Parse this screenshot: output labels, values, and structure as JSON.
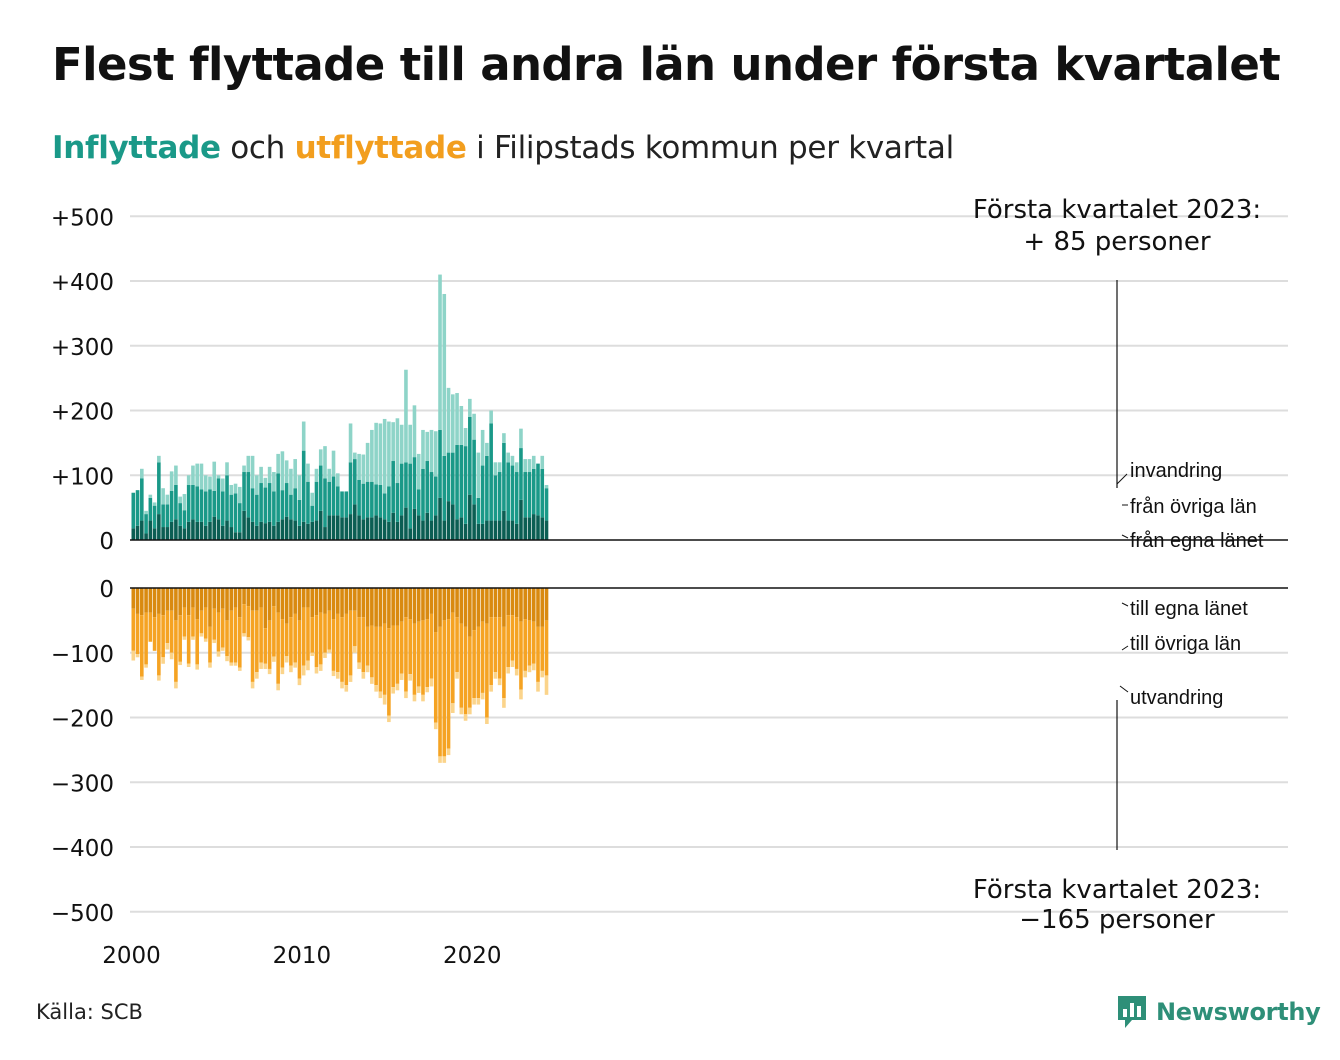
{
  "title": "Flest flyttade till andra län under första kvartalet",
  "subtitle": {
    "in_word": "Inflyttade",
    "mid_word": "och",
    "out_word": "utflyttade",
    "rest": "i Filipstads kommun per kvartal"
  },
  "source": "Källa: SCB",
  "logo": {
    "name": "Newsworthy",
    "icon": "bar-chart-speech-bubble-icon"
  },
  "colors": {
    "in_egna": "#0b5e53",
    "in_ovriga": "#1a9988",
    "in_invandring": "#8ed4c8",
    "out_egna": "#d98a10",
    "out_ovriga": "#f5a323",
    "out_utvandring": "#fbd48b",
    "grid": "#dddddd"
  },
  "chart_data": [
    {
      "type": "bar",
      "stacked": true,
      "x_start_year": 2000,
      "x_step": "quarter",
      "xticks": [
        "2000",
        "2010",
        "2020"
      ],
      "yticks": [
        "+500",
        "+400",
        "+300",
        "+200",
        "+100",
        "0"
      ],
      "ylim": [
        0,
        500
      ],
      "grid": true,
      "series": [
        {
          "name": "från egna länet",
          "values": [
            18,
            22,
            30,
            10,
            30,
            18,
            40,
            20,
            20,
            28,
            32,
            22,
            18,
            28,
            32,
            28,
            28,
            22,
            28,
            36,
            32,
            22,
            30,
            20,
            12,
            12,
            45,
            35,
            28,
            22,
            28,
            26,
            28,
            22,
            28,
            32,
            36,
            32,
            30,
            22,
            28,
            25,
            28,
            30,
            45,
            20,
            38,
            38,
            38,
            35,
            35,
            40,
            55,
            38,
            32,
            35,
            35,
            38,
            35,
            32,
            28,
            42,
            28,
            38,
            50,
            18,
            48,
            38,
            30,
            42,
            30,
            38,
            65,
            30,
            60,
            55,
            32,
            35,
            25,
            70,
            55,
            25,
            25,
            30,
            30,
            30,
            30,
            45,
            30,
            30,
            25,
            62,
            35,
            35,
            40,
            38,
            35,
            30
          ]
        },
        {
          "name": "från övriga län",
          "values": [
            55,
            55,
            65,
            30,
            35,
            35,
            80,
            35,
            35,
            48,
            53,
            35,
            28,
            57,
            53,
            55,
            50,
            53,
            50,
            40,
            63,
            53,
            70,
            50,
            60,
            45,
            60,
            70,
            52,
            48,
            60,
            55,
            60,
            53,
            75,
            45,
            52,
            38,
            50,
            40,
            110,
            65,
            25,
            60,
            70,
            75,
            52,
            60,
            45,
            40,
            40,
            80,
            70,
            55,
            55,
            55,
            55,
            48,
            50,
            40,
            55,
            80,
            60,
            80,
            70,
            100,
            80,
            40,
            80,
            80,
            75,
            60,
            105,
            100,
            75,
            80,
            115,
            112,
            120,
            120,
            100,
            40,
            90,
            100,
            150,
            70,
            75,
            105,
            90,
            85,
            80,
            80,
            70,
            70,
            70,
            80,
            75,
            50
          ]
        },
        {
          "name": "invandring",
          "values": [
            0,
            0,
            15,
            5,
            5,
            5,
            10,
            25,
            15,
            30,
            30,
            10,
            25,
            15,
            30,
            35,
            40,
            25,
            20,
            45,
            5,
            20,
            20,
            15,
            15,
            25,
            10,
            25,
            50,
            30,
            25,
            15,
            25,
            30,
            30,
            60,
            35,
            40,
            45,
            38,
            45,
            28,
            20,
            20,
            25,
            50,
            20,
            40,
            20,
            0,
            0,
            60,
            10,
            40,
            45,
            60,
            80,
            95,
            95,
            115,
            100,
            60,
            100,
            60,
            143,
            60,
            80,
            55,
            60,
            45,
            65,
            70,
            240,
            250,
            100,
            90,
            80,
            60,
            28,
            28,
            40,
            70,
            55,
            20,
            20,
            20,
            15,
            15,
            15,
            15,
            15,
            30,
            20,
            20,
            20,
            0,
            20,
            5
          ]
        }
      ]
    },
    {
      "type": "bar",
      "stacked": true,
      "x_start_year": 2000,
      "x_step": "quarter",
      "xticks": [
        "2000",
        "2010",
        "2020"
      ],
      "yticks": [
        "0",
        "−100",
        "−200",
        "−300",
        "−400",
        "−500"
      ],
      "ylim": [
        -500,
        0
      ],
      "grid": true,
      "series": [
        {
          "name": "till egna länet",
          "values": [
            -32,
            -40,
            -42,
            -38,
            -38,
            -45,
            -40,
            -42,
            -35,
            -35,
            -50,
            -42,
            -30,
            -42,
            -30,
            -48,
            -35,
            -30,
            -60,
            -32,
            -38,
            -32,
            -50,
            -35,
            -30,
            -45,
            -25,
            -28,
            -35,
            -35,
            -30,
            -62,
            -50,
            -28,
            -38,
            -48,
            -55,
            -45,
            -40,
            -50,
            -30,
            -30,
            -45,
            -42,
            -38,
            -40,
            -35,
            -48,
            -40,
            -45,
            -40,
            -35,
            -35,
            -45,
            -45,
            -60,
            -58,
            -60,
            -60,
            -55,
            -62,
            -58,
            -58,
            -52,
            -45,
            -48,
            -55,
            -52,
            -50,
            -48,
            -40,
            -68,
            -60,
            -50,
            -48,
            -38,
            -45,
            -55,
            -60,
            -75,
            -65,
            -60,
            -52,
            -55,
            -45,
            -45,
            -45,
            -60,
            -42,
            -42,
            -45,
            -52,
            -48,
            -50,
            -52,
            -60,
            -60,
            -50
          ]
        },
        {
          "name": "till övriga län",
          "values": [
            -65,
            -62,
            -95,
            -80,
            -45,
            -52,
            -95,
            -65,
            -50,
            -65,
            -95,
            -72,
            -45,
            -75,
            -45,
            -70,
            -35,
            -48,
            -55,
            -48,
            -60,
            -60,
            -55,
            -80,
            -85,
            -78,
            -45,
            -48,
            -110,
            -95,
            -85,
            -55,
            -75,
            -78,
            -110,
            -75,
            -50,
            -75,
            -75,
            -90,
            -90,
            -82,
            -55,
            -80,
            -80,
            -60,
            -60,
            -80,
            -90,
            -100,
            -110,
            -100,
            -55,
            -70,
            -85,
            -60,
            -80,
            -90,
            -100,
            -110,
            -135,
            -95,
            -90,
            -80,
            -115,
            -85,
            -110,
            -100,
            -115,
            -105,
            -100,
            -140,
            -200,
            -210,
            -200,
            -140,
            -85,
            -130,
            -135,
            -110,
            -105,
            -110,
            -110,
            -145,
            -105,
            -85,
            -95,
            -110,
            -80,
            -70,
            -80,
            -105,
            -80,
            -70,
            -65,
            -85,
            -68,
            -85
          ]
        },
        {
          "name": "utvandring",
          "values": [
            -15,
            -5,
            -5,
            -5,
            0,
            0,
            -8,
            -10,
            -10,
            -10,
            -10,
            -5,
            -5,
            -5,
            -5,
            -8,
            -5,
            -5,
            -8,
            -5,
            -8,
            -5,
            -8,
            -5,
            -5,
            -5,
            -5,
            -5,
            -10,
            -10,
            -10,
            -8,
            -8,
            -8,
            -10,
            -10,
            -10,
            -10,
            -8,
            -10,
            -15,
            -15,
            -5,
            -10,
            -10,
            -8,
            -5,
            -8,
            -10,
            -10,
            -10,
            -10,
            -10,
            -10,
            -10,
            -10,
            -10,
            -10,
            -10,
            -15,
            -10,
            -10,
            -10,
            -10,
            -10,
            -10,
            -10,
            -10,
            -10,
            -8,
            -12,
            -10,
            -10,
            -10,
            -10,
            -15,
            -10,
            -10,
            -10,
            -10,
            -10,
            -10,
            -10,
            -10,
            -10,
            -10,
            -10,
            -15,
            -10,
            -10,
            -10,
            -15,
            -10,
            -10,
            -10,
            -15,
            -10,
            -30
          ]
        }
      ]
    }
  ],
  "annotations": {
    "top_line1": "Första kvartalet 2023:",
    "top_line2": "+ 85 personer",
    "bottom_line1": "Första kvartalet 2023:",
    "bottom_line2": "−165 personer",
    "in_labels": [
      "invandring",
      "från övriga län",
      "från egna länet"
    ],
    "out_labels": [
      "till egna länet",
      "till övriga län",
      "utvandring"
    ]
  }
}
